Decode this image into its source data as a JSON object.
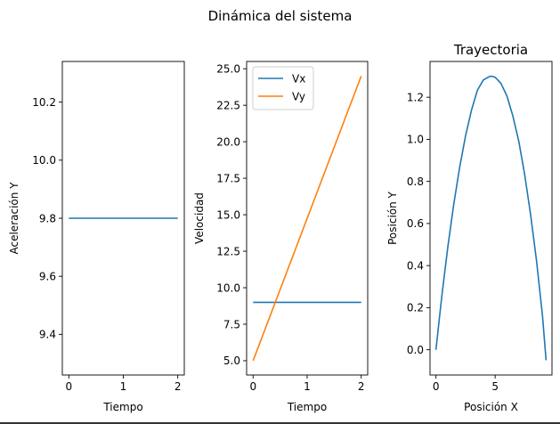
{
  "figure": {
    "suptitle": "Dinámica del sistema"
  },
  "chart_data": [
    {
      "type": "line",
      "title": "",
      "xlabel": "Tiempo",
      "ylabel": "Aceleración Y",
      "xlim": [
        -0.12,
        2.12
      ],
      "ylim": [
        9.26,
        10.34
      ],
      "xticks": [
        0,
        1,
        2
      ],
      "xtick_labels": [
        "0",
        "1",
        "2"
      ],
      "yticks": [
        9.4,
        9.6,
        9.8,
        10.0,
        10.2
      ],
      "ytick_labels": [
        "9.4",
        "9.6",
        "9.8",
        "10.0",
        "10.2"
      ],
      "grid": false,
      "legend": null,
      "series": [
        {
          "name": "",
          "color": "#1f77b4",
          "x": [
            0,
            2
          ],
          "y": [
            9.8,
            9.8
          ]
        }
      ]
    },
    {
      "type": "line",
      "title": "",
      "xlabel": "Tiempo",
      "ylabel": "Velocidad",
      "xlim": [
        -0.12,
        2.12
      ],
      "ylim": [
        4.02,
        25.5
      ],
      "xticks": [
        0,
        1,
        2
      ],
      "xtick_labels": [
        "0",
        "1",
        "2"
      ],
      "yticks": [
        5.0,
        7.5,
        10.0,
        12.5,
        15.0,
        17.5,
        20.0,
        22.5,
        25.0
      ],
      "ytick_labels": [
        "5.0",
        "7.5",
        "10.0",
        "12.5",
        "15.0",
        "17.5",
        "20.0",
        "22.5",
        "25.0"
      ],
      "grid": false,
      "legend": "upper left",
      "series": [
        {
          "name": "Vx",
          "color": "#1f77b4",
          "x": [
            0,
            2
          ],
          "y": [
            9.0,
            9.0
          ]
        },
        {
          "name": "Vy",
          "color": "#ff7f0e",
          "x": [
            0,
            2
          ],
          "y": [
            5.0,
            24.5
          ]
        }
      ]
    },
    {
      "type": "line",
      "title": "Trayectoria",
      "xlabel": "Posición X",
      "ylabel": "Posición Y",
      "xlim": [
        -0.5,
        9.8
      ],
      "ylim": [
        -0.12,
        1.37
      ],
      "xticks": [
        0,
        5
      ],
      "xtick_labels": [
        "0",
        "5"
      ],
      "yticks": [
        0.0,
        0.2,
        0.4,
        0.6,
        0.8,
        1.0,
        1.2
      ],
      "ytick_labels": [
        "0.0",
        "0.2",
        "0.4",
        "0.6",
        "0.8",
        "1.0",
        "1.2"
      ],
      "grid": false,
      "legend": null,
      "series": [
        {
          "name": "",
          "color": "#1f77b4",
          "x": [
            0.0,
            0.5,
            1.0,
            1.5,
            2.0,
            2.5,
            3.0,
            3.5,
            4.0,
            4.5,
            4.7,
            5.0,
            5.5,
            6.0,
            6.5,
            7.0,
            7.5,
            8.0,
            8.5,
            9.0,
            9.3
          ],
          "y": [
            0.0,
            0.257,
            0.487,
            0.69,
            0.866,
            1.016,
            1.138,
            1.233,
            1.282,
            1.298,
            1.3,
            1.295,
            1.265,
            1.205,
            1.11,
            0.99,
            0.83,
            0.64,
            0.42,
            0.16,
            -0.05
          ]
        }
      ]
    }
  ]
}
